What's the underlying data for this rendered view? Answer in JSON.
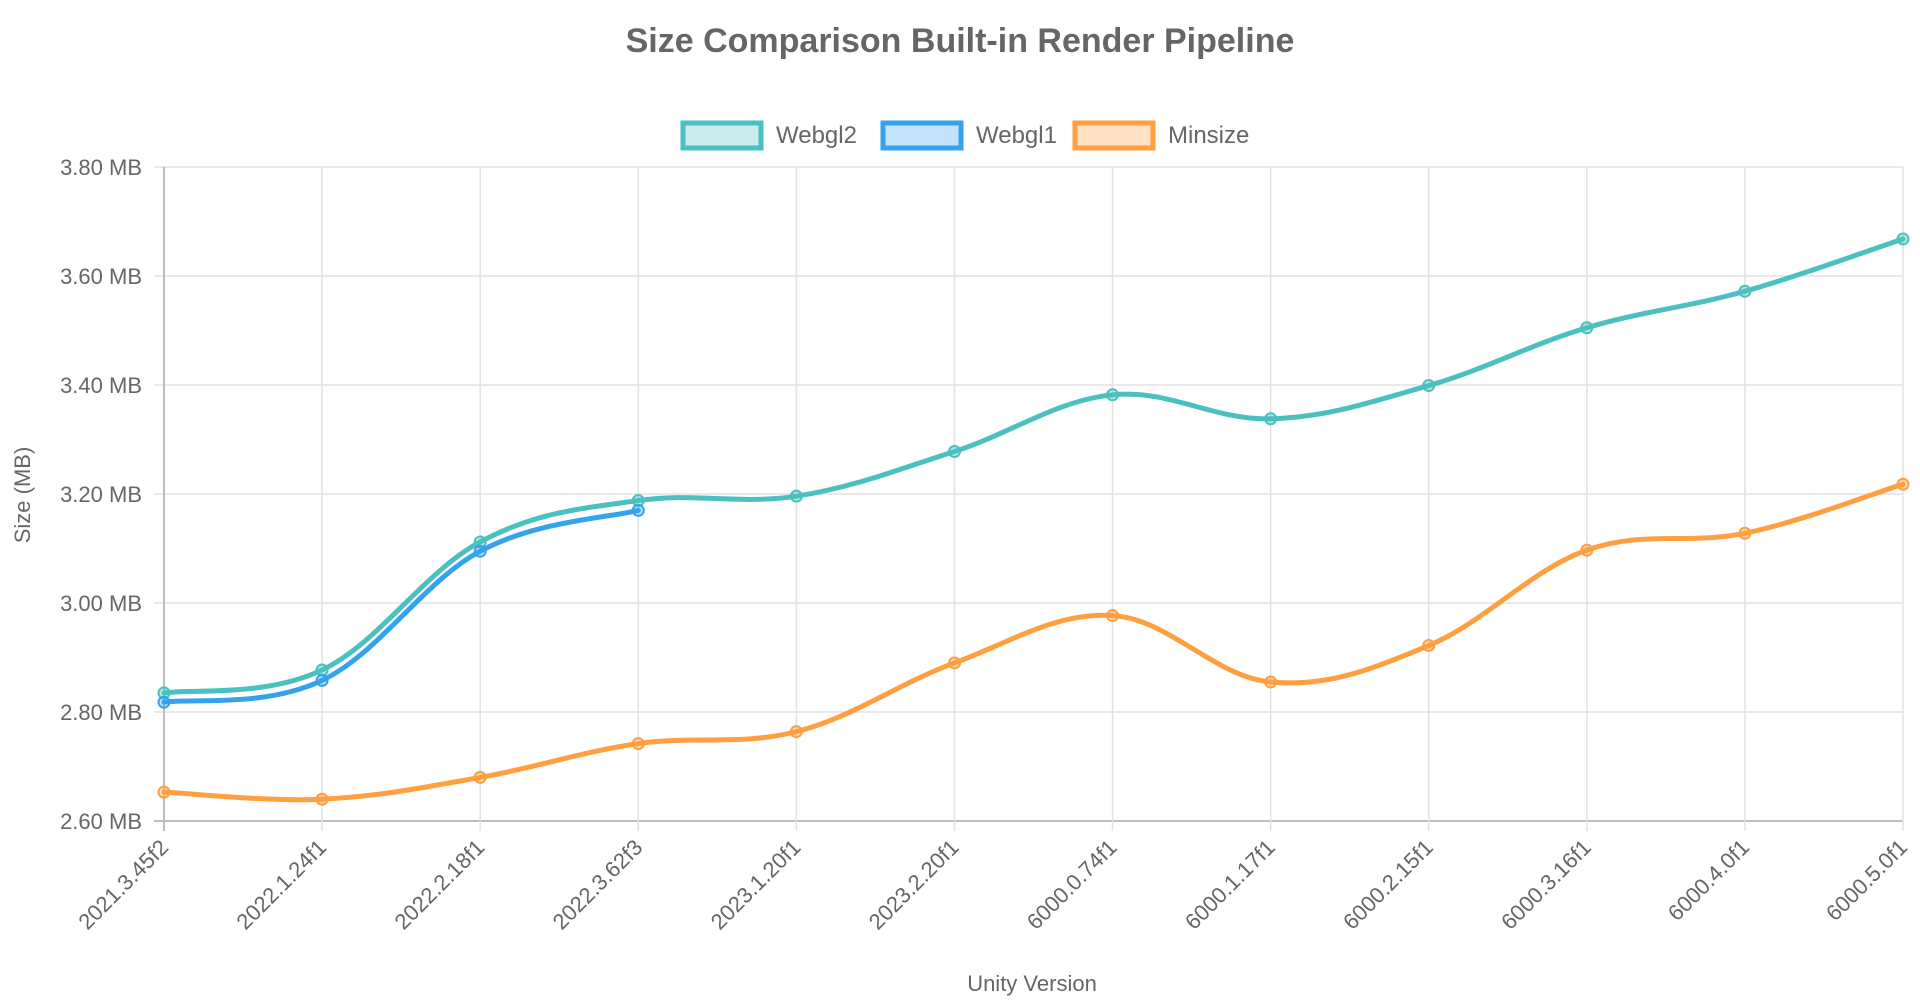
{
  "chart_data": {
    "type": "line",
    "title": "Size Comparison Built-in Render Pipeline",
    "xlabel": "Unity Version",
    "ylabel": "Size (MB)",
    "categories": [
      "2021.3.45f2",
      "2022.1.24f1",
      "2022.2.18f1",
      "2022.3.62f3",
      "2023.1.20f1",
      "2023.2.20f1",
      "6000.0.74f1",
      "6000.1.17f1",
      "6000.2.15f1",
      "6000.3.16f1",
      "6000.4.0f1",
      "6000.5.0f1"
    ],
    "ylim": [
      2.6,
      3.8
    ],
    "yticks": [
      2.6,
      2.8,
      3.0,
      3.2,
      3.4,
      3.6,
      3.8
    ],
    "ytick_labels": [
      "2.60 MB",
      "2.80 MB",
      "3.00 MB",
      "3.20 MB",
      "3.40 MB",
      "3.60 MB",
      "3.80 MB"
    ],
    "grid": true,
    "legend_position": "top-center",
    "series": [
      {
        "name": "Webgl2",
        "color": "#4bc0c0",
        "values": [
          2.835,
          2.877,
          3.112,
          3.188,
          3.196,
          3.278,
          3.382,
          3.338,
          3.399,
          3.505,
          3.572,
          3.668
        ]
      },
      {
        "name": "Webgl1",
        "color": "#36a2eb",
        "values": [
          2.818,
          2.858,
          3.095,
          3.17,
          null,
          null,
          null,
          null,
          null,
          null,
          null,
          null
        ]
      },
      {
        "name": "Minsize",
        "color": "#ff9f40",
        "values": [
          2.653,
          2.64,
          2.68,
          2.742,
          2.764,
          2.89,
          2.977,
          2.855,
          2.922,
          3.097,
          3.128,
          3.218
        ]
      }
    ]
  }
}
